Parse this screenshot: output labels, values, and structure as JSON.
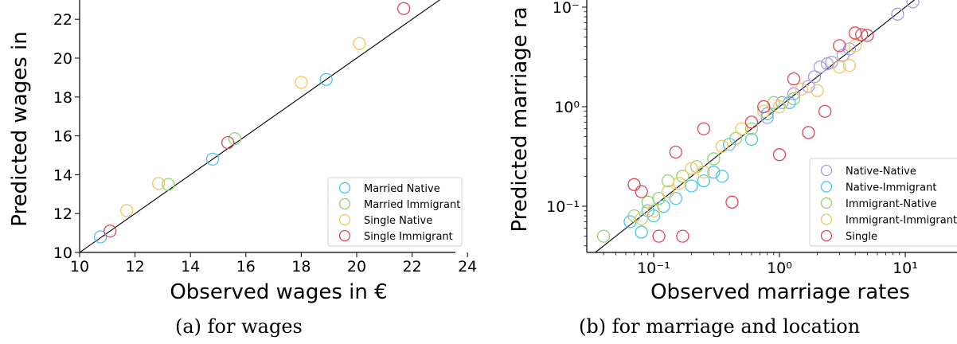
{
  "colors": {
    "married_native": "#4cc3e8",
    "married_immigrant": "#8fd46a",
    "single_native": "#f5c65a",
    "single_immigrant": "#e0455a",
    "native_native": "#a89be6",
    "native_immigrant": "#4cc3e8",
    "immigrant_native": "#8fd46a",
    "immigrant_immigrant": "#f5c65a",
    "single": "#e0455a"
  },
  "chart_data": [
    {
      "type": "scatter",
      "xlabel": "Observed wages in €",
      "ylabel": "Predicted wages in",
      "caption": "(a) for wages",
      "xlim": [
        10,
        24
      ],
      "ylim": [
        10,
        22.8
      ],
      "xticks": [
        "10",
        "12",
        "14",
        "16",
        "18",
        "20",
        "22",
        "24"
      ],
      "yticks": [
        "10",
        "12",
        "14",
        "16",
        "18",
        "20",
        "22"
      ],
      "diagonal_line": true,
      "legend_position": "lower-right",
      "series": [
        {
          "name": "Married Native",
          "color_key": "married_native",
          "points": [
            [
              10.75,
              10.8
            ],
            [
              14.8,
              14.8
            ],
            [
              18.9,
              18.9
            ]
          ]
        },
        {
          "name": "Married Immigrant",
          "color_key": "married_immigrant",
          "points": [
            [
              13.2,
              13.5
            ],
            [
              15.6,
              15.85
            ]
          ]
        },
        {
          "name": "Single Native",
          "color_key": "single_native",
          "points": [
            [
              11.7,
              12.15
            ],
            [
              12.85,
              13.55
            ],
            [
              18.0,
              18.75
            ],
            [
              20.1,
              20.75
            ]
          ]
        },
        {
          "name": "Single Immigrant",
          "color_key": "single_immigrant",
          "points": [
            [
              11.1,
              11.1
            ],
            [
              15.35,
              15.65
            ],
            [
              21.7,
              22.55
            ]
          ]
        }
      ]
    },
    {
      "type": "scatter",
      "xscale": "log",
      "yscale": "log",
      "xlabel": "Observed marriage rates",
      "ylabel": "Predicted marriage ra",
      "caption": "(b) for marriage and location",
      "xlim": [
        0.03,
        14
      ],
      "ylim": [
        0.035,
        12
      ],
      "xticks": [
        {
          "value": 0.1,
          "label": "10⁻¹"
        },
        {
          "value": 1,
          "label": "10⁰"
        },
        {
          "value": 10,
          "label": "10¹"
        }
      ],
      "yticks": [
        {
          "value": 0.1,
          "label": "10⁻¹"
        },
        {
          "value": 1,
          "label": "10⁰"
        },
        {
          "value": 10,
          "label": "10⁻"
        }
      ],
      "diagonal_line": true,
      "legend_position": "lower-right",
      "series": [
        {
          "name": "Native-Native",
          "color_key": "native_native",
          "points": [
            [
              0.8,
              0.78
            ],
            [
              1.05,
              1.1
            ],
            [
              1.3,
              1.35
            ],
            [
              1.7,
              1.6
            ],
            [
              1.9,
              2.0
            ],
            [
              2.1,
              2.5
            ],
            [
              2.4,
              2.7
            ],
            [
              2.6,
              2.8
            ],
            [
              3.2,
              3.3
            ],
            [
              3.6,
              3.8
            ],
            [
              8.7,
              8.5
            ],
            [
              11.5,
              11.3
            ]
          ]
        },
        {
          "name": "Native-Immigrant",
          "color_key": "native_immigrant",
          "points": [
            [
              0.065,
              0.07
            ],
            [
              0.08,
              0.055
            ],
            [
              0.09,
              0.09
            ],
            [
              0.1,
              0.08
            ],
            [
              0.12,
              0.1
            ],
            [
              0.15,
              0.12
            ],
            [
              0.2,
              0.16
            ],
            [
              0.25,
              0.18
            ],
            [
              0.3,
              0.22
            ],
            [
              0.35,
              0.2
            ],
            [
              0.4,
              0.42
            ],
            [
              0.6,
              0.47
            ],
            [
              0.8,
              0.85
            ],
            [
              1.2,
              1.1
            ]
          ]
        },
        {
          "name": "Immigrant-Native",
          "color_key": "immigrant_native",
          "points": [
            [
              0.04,
              0.05
            ],
            [
              0.07,
              0.08
            ],
            [
              0.09,
              0.11
            ],
            [
              0.11,
              0.12
            ],
            [
              0.13,
              0.18
            ],
            [
              0.17,
              0.2
            ],
            [
              0.22,
              0.25
            ],
            [
              0.3,
              0.3
            ],
            [
              0.45,
              0.48
            ],
            [
              0.6,
              0.6
            ],
            [
              0.9,
              1.1
            ],
            [
              1.3,
              1.2
            ]
          ]
        },
        {
          "name": "Immigrant-Immigrant",
          "color_key": "immigrant_immigrant",
          "points": [
            [
              0.08,
              0.075
            ],
            [
              0.1,
              0.09
            ],
            [
              0.13,
              0.14
            ],
            [
              0.16,
              0.17
            ],
            [
              0.2,
              0.24
            ],
            [
              0.25,
              0.22
            ],
            [
              0.35,
              0.4
            ],
            [
              0.5,
              0.6
            ],
            [
              0.75,
              0.9
            ],
            [
              1.0,
              1.0
            ],
            [
              1.5,
              1.5
            ],
            [
              2.0,
              1.45
            ],
            [
              3.0,
              2.5
            ],
            [
              3.6,
              2.6
            ],
            [
              4.0,
              4.1
            ]
          ]
        },
        {
          "name": "Single",
          "color_key": "single",
          "points": [
            [
              0.07,
              0.165
            ],
            [
              0.08,
              0.14
            ],
            [
              0.11,
              0.05
            ],
            [
              0.15,
              0.35
            ],
            [
              0.17,
              0.05
            ],
            [
              0.25,
              0.6
            ],
            [
              0.42,
              0.11
            ],
            [
              0.6,
              0.7
            ],
            [
              0.75,
              1.0
            ],
            [
              1.0,
              0.33
            ],
            [
              1.3,
              1.9
            ],
            [
              1.7,
              0.55
            ],
            [
              2.3,
              0.9
            ],
            [
              3.0,
              4.1
            ],
            [
              4.0,
              5.5
            ],
            [
              4.5,
              5.3
            ],
            [
              5.0,
              5.2
            ]
          ]
        }
      ]
    }
  ]
}
